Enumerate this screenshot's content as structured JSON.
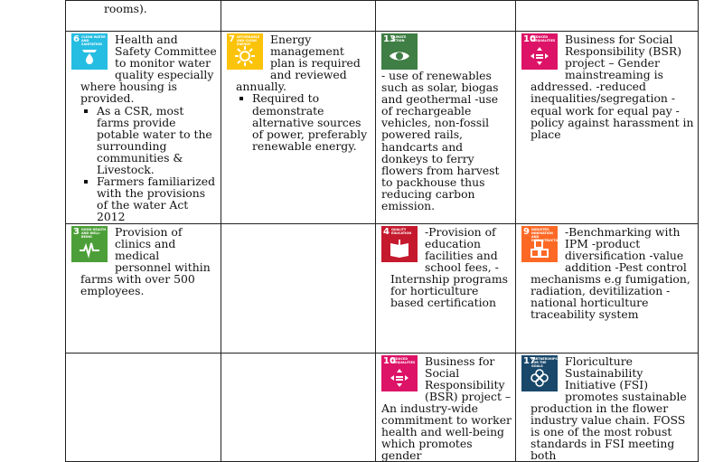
{
  "top_row": [
    "rooms).",
    "",
    "",
    ""
  ],
  "row1": [
    {
      "sdg": {
        "num": "6",
        "title": "Clean water and sanitation",
        "color": "#26bde2",
        "icon": "water-drop-icon"
      },
      "text": "Health and Safety Committee to monitor water quality especially where housing is provided.",
      "bullets": [
        "As a CSR, most farms provide potable water to the surrounding communities & Livestock.",
        "Farmers familiarized with the provisions of the water Act 2012"
      ]
    },
    {
      "sdg": {
        "num": "7",
        "title": "Affordable and clean energy",
        "color": "#fcc30b",
        "icon": "sun-icon"
      },
      "text": "Energy management plan is required and reviewed annually.",
      "bullets": [
        "Required to demonstrate alternative sources of power, preferably renewable energy."
      ]
    },
    {
      "sdg": {
        "num": "13",
        "title": "Climate action",
        "color": "#3f7e44",
        "icon": "eye-globe-icon"
      },
      "text": "- use of renewables such as solar, biogas and geothermal -use of rechargeable vehicles, non-fossil powered rails, handcarts and donkeys to ferry flowers from harvest to packhouse thus reducing carbon emission."
    },
    {
      "sdg": {
        "num": "10",
        "title": "Reduced inequalities",
        "color": "#dd1367",
        "icon": "equality-arrows-icon"
      },
      "text": "Business for Social Responsibility (BSR) project – Gender mainstreaming is addressed. -reduced inequalities/segregation -equal work for equal pay - policy against harassment in place"
    }
  ],
  "row2": [
    {
      "sdg": {
        "num": "3",
        "title": "Good health and well-being",
        "color": "#4c9f38",
        "icon": "heartbeat-icon"
      },
      "text": "Provision of clinics and medical personnel within farms with over 500 employees."
    },
    {
      "text": ""
    },
    {
      "sdg": {
        "num": "4",
        "title": "Quality education",
        "color": "#c5192d",
        "icon": "book-icon"
      },
      "text": "-Provision of education facilities and school fees, - Internship programs for horticulture based certification"
    },
    {
      "sdg": {
        "num": "9",
        "title": "Industry, innovation and infrastructure",
        "color": "#fd6925",
        "icon": "cubes-icon"
      },
      "text": "-Benchmarking with IPM -product diversification -value addition -Pest control mechanisms e.g fumigation, radiation, devitilization -national horticulture traceability system"
    }
  ],
  "row3": [
    {
      "text": ""
    },
    {
      "text": ""
    },
    {
      "sdg": {
        "num": "10",
        "title": "Reduced inequalities",
        "color": "#dd1367",
        "icon": "equality-arrows-icon"
      },
      "text": "Business for Social Responsibility (BSR) project – An industry-wide commitment to worker health and well-being which promotes gender"
    },
    {
      "sdg": {
        "num": "17",
        "title": "Partnerships for the goals",
        "color": "#19486a",
        "icon": "flower-rings-icon"
      },
      "text": "Floriculture Sustainability Initiative (FSI) promotes sustainable production in the flower industry value chain. FOSS is one of the most robust standards in FSI meeting both"
    }
  ]
}
